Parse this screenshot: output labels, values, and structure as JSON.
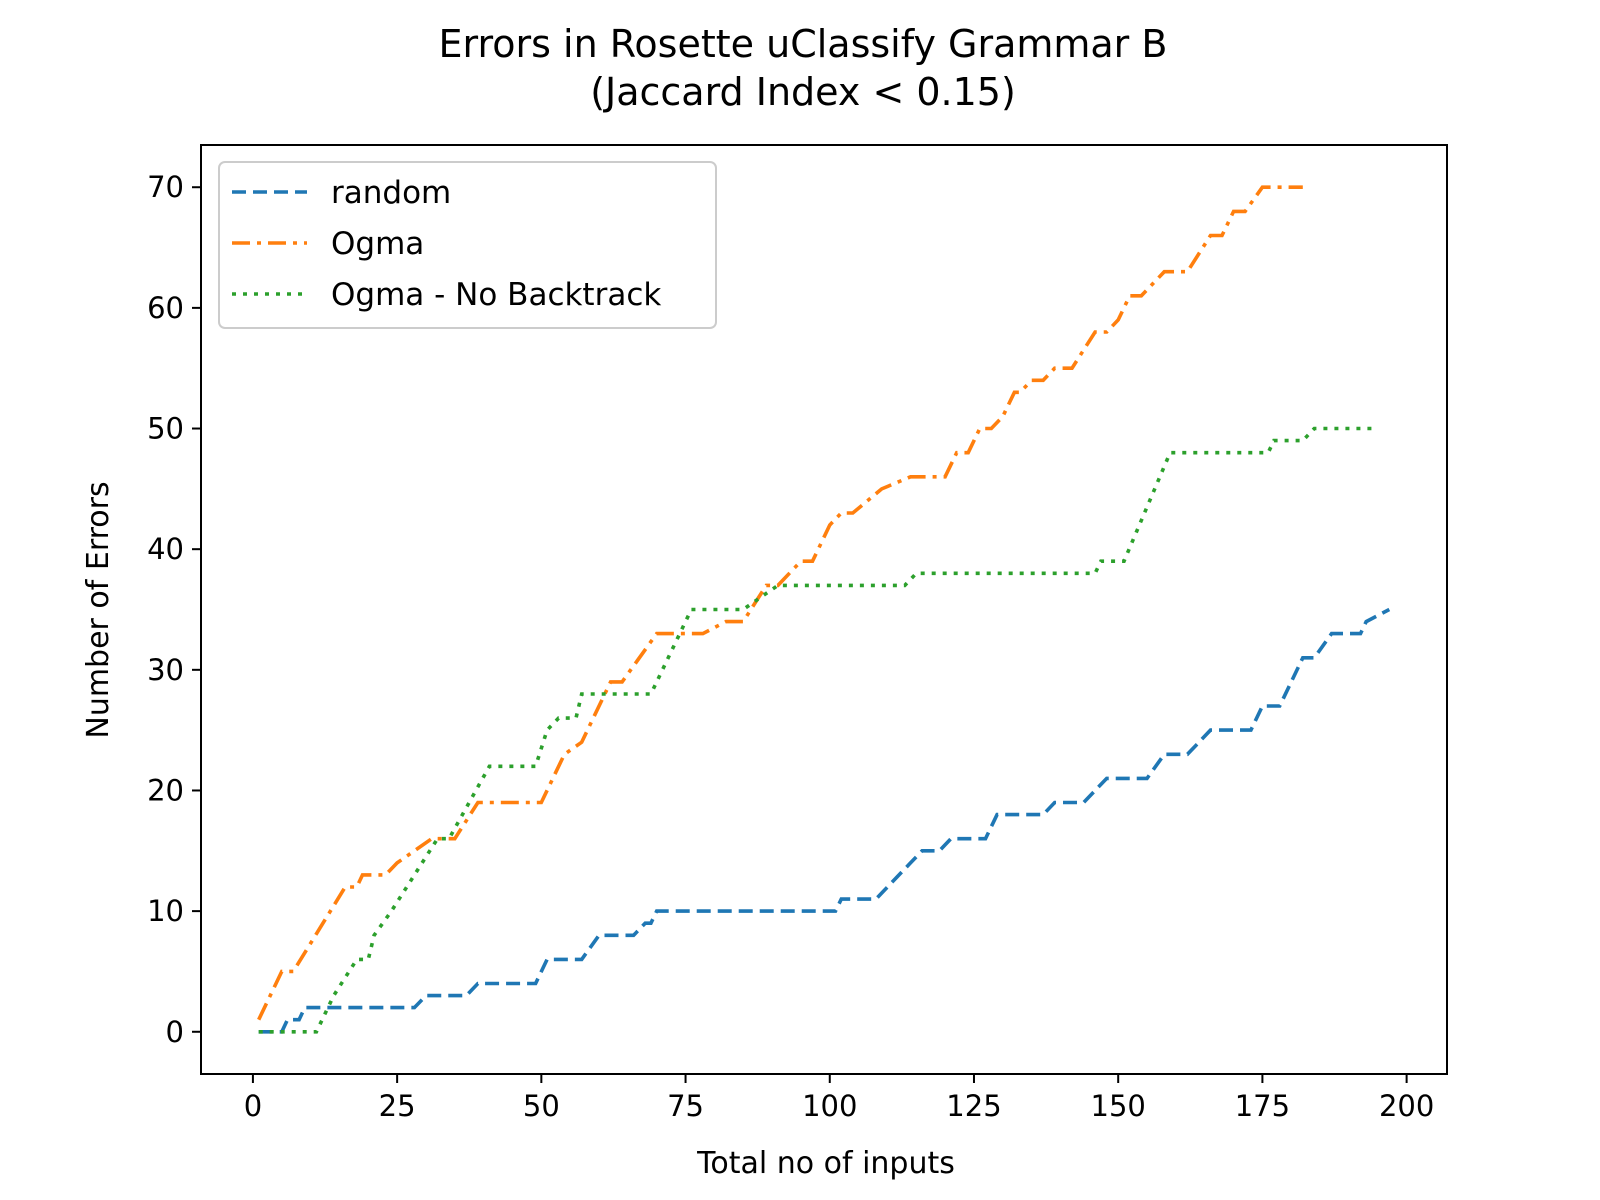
{
  "chart_data": {
    "type": "line",
    "title": [
      "Errors in Rosette uClassify Grammar B",
      "(Jaccard Index < 0.15)"
    ],
    "xlabel": "Total no of inputs",
    "ylabel": "Number of Errors",
    "xlim": [
      -9,
      207
    ],
    "ylim": [
      -3.5,
      73.5
    ],
    "xticks": [
      0,
      25,
      50,
      75,
      100,
      125,
      150,
      175,
      200
    ],
    "yticks": [
      0,
      10,
      20,
      30,
      40,
      50,
      60,
      70
    ],
    "grid": false,
    "legend": "upper-left",
    "series": [
      {
        "name": "random",
        "color": "#1f77b4",
        "dash": "dashed",
        "points": [
          [
            1,
            0
          ],
          [
            5,
            0
          ],
          [
            6,
            1
          ],
          [
            8,
            1
          ],
          [
            9,
            2
          ],
          [
            28,
            2
          ],
          [
            30,
            3
          ],
          [
            37,
            3
          ],
          [
            39,
            4
          ],
          [
            49,
            4
          ],
          [
            51,
            6
          ],
          [
            57,
            6
          ],
          [
            60,
            8
          ],
          [
            66,
            8
          ],
          [
            68,
            9
          ],
          [
            69,
            9
          ],
          [
            70,
            10
          ],
          [
            101,
            10
          ],
          [
            102,
            11
          ],
          [
            108,
            11
          ],
          [
            114,
            14
          ],
          [
            116,
            15
          ],
          [
            119,
            15
          ],
          [
            121,
            16
          ],
          [
            127,
            16
          ],
          [
            129,
            18
          ],
          [
            137,
            18
          ],
          [
            139,
            19
          ],
          [
            144,
            19
          ],
          [
            148,
            21
          ],
          [
            155,
            21
          ],
          [
            158,
            23
          ],
          [
            162,
            23
          ],
          [
            164,
            24
          ],
          [
            166,
            25
          ],
          [
            173,
            25
          ],
          [
            175,
            27
          ],
          [
            178,
            27
          ],
          [
            182,
            31
          ],
          [
            184,
            31
          ],
          [
            187,
            33
          ],
          [
            192,
            33
          ],
          [
            193,
            34
          ],
          [
            197,
            35
          ]
        ]
      },
      {
        "name": "Ogma",
        "color": "#ff7f0e",
        "dash": "dashdot",
        "points": [
          [
            1,
            1
          ],
          [
            5,
            5
          ],
          [
            7,
            5
          ],
          [
            16,
            12
          ],
          [
            18,
            12
          ],
          [
            19,
            13
          ],
          [
            23,
            13
          ],
          [
            25,
            14
          ],
          [
            31,
            16
          ],
          [
            35,
            16
          ],
          [
            39,
            19
          ],
          [
            50,
            19
          ],
          [
            54,
            23
          ],
          [
            57,
            24
          ],
          [
            62,
            29
          ],
          [
            64,
            29
          ],
          [
            70,
            33
          ],
          [
            78,
            33
          ],
          [
            82,
            34
          ],
          [
            85,
            34
          ],
          [
            89,
            37
          ],
          [
            91,
            37
          ],
          [
            95,
            39
          ],
          [
            97,
            39
          ],
          [
            100,
            42
          ],
          [
            102,
            43
          ],
          [
            104,
            43
          ],
          [
            109,
            45
          ],
          [
            114,
            46
          ],
          [
            120,
            46
          ],
          [
            122,
            48
          ],
          [
            124,
            48
          ],
          [
            126,
            50
          ],
          [
            128,
            50
          ],
          [
            130,
            51
          ],
          [
            132,
            53
          ],
          [
            133,
            53
          ],
          [
            135,
            54
          ],
          [
            137,
            54
          ],
          [
            139,
            55
          ],
          [
            142,
            55
          ],
          [
            146,
            58
          ],
          [
            148,
            58
          ],
          [
            150,
            59
          ],
          [
            152,
            61
          ],
          [
            154,
            61
          ],
          [
            158,
            63
          ],
          [
            162,
            63
          ],
          [
            166,
            66
          ],
          [
            168,
            66
          ],
          [
            170,
            68
          ],
          [
            172,
            68
          ],
          [
            175,
            70
          ],
          [
            182,
            70
          ]
        ]
      },
      {
        "name": "Ogma - No Backtrack",
        "color": "#2ca02c",
        "dash": "dotted",
        "points": [
          [
            1,
            0
          ],
          [
            11,
            0
          ],
          [
            14,
            3
          ],
          [
            18,
            6
          ],
          [
            20,
            6
          ],
          [
            21,
            8
          ],
          [
            24,
            10
          ],
          [
            32,
            16
          ],
          [
            34,
            16
          ],
          [
            41,
            22
          ],
          [
            49,
            22
          ],
          [
            51,
            25
          ],
          [
            53,
            26
          ],
          [
            56,
            26
          ],
          [
            57,
            28
          ],
          [
            69,
            28
          ],
          [
            76,
            35
          ],
          [
            85,
            35
          ],
          [
            88,
            36
          ],
          [
            91,
            37
          ],
          [
            113,
            37
          ],
          [
            115,
            38
          ],
          [
            146,
            38
          ],
          [
            147,
            39
          ],
          [
            151,
            39
          ],
          [
            159,
            48
          ],
          [
            176,
            48
          ],
          [
            177,
            49
          ],
          [
            182,
            49
          ],
          [
            184,
            50
          ],
          [
            195,
            50
          ]
        ]
      }
    ]
  }
}
